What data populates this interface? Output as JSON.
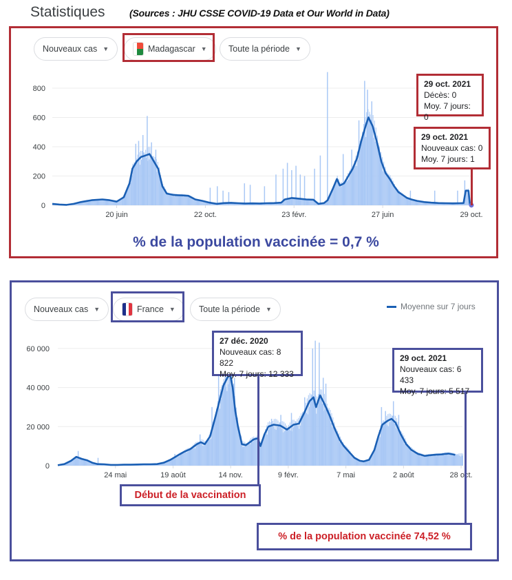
{
  "header": {
    "title": "Statistiques",
    "sources": "(Sources : JHU CSSE COVID-19 Data et Our World in Data)"
  },
  "colors": {
    "line": "#1a5fb4",
    "bar": "#a9c8f5",
    "red_frame": "#b22d35",
    "blue_frame": "#4a4f9c",
    "vacc_red": "#cc2027",
    "vacc_blue": "#3c49a0"
  },
  "madagascar": {
    "filters": {
      "metric": "Nouveaux cas",
      "country": "Madagascar",
      "period": "Toute la période"
    },
    "flag_icon": "madagascar-flag-icon",
    "tooltip_deaths": {
      "date": "29 oct. 2021",
      "line1": "Décès: 0",
      "line2": "Moy. 7 jours: 0"
    },
    "tooltip_cases": {
      "date": "29 oct. 2021",
      "line1": "Nouveaux cas: 0",
      "line2": "Moy. 7 jours: 1"
    },
    "vaccination": "% de la population vaccinée = 0,7 %"
  },
  "france": {
    "filters": {
      "metric": "Nouveaux cas",
      "country": "France",
      "period": "Toute la période"
    },
    "flag_icon": "france-flag-icon",
    "legend": "Moyenne sur 7 jours",
    "tooltip_dec": {
      "date": "27 déc. 2020",
      "line1": "Nouveaux cas: 8 822",
      "line2": "Moy. 7 jours: 12 333"
    },
    "tooltip_oct": {
      "date": "29 oct. 2021",
      "line1": "Nouveaux cas: 6 433",
      "line2": "Moy. 7 jours: 5 517"
    },
    "vaccination_start": "Début de la vaccination",
    "vaccination": "% de la population vaccinée 74,52 %"
  },
  "chart_data": [
    {
      "type": "bar",
      "title": "Nouveaux cas — Madagascar",
      "xlabel": "",
      "ylabel": "",
      "ylim": [
        0,
        900
      ],
      "yticks": [
        "0",
        "200",
        "400",
        "600",
        "800"
      ],
      "ytick_values": [
        0,
        200,
        400,
        600,
        800
      ],
      "xticks": [
        "20 juin",
        "22 oct.",
        "23 févr.",
        "27 juin",
        "29 oct."
      ],
      "xtick_days": [
        90,
        214,
        338,
        462,
        586
      ],
      "days_total": 586,
      "series": [
        {
          "name": "Moyenne sur 7 jours",
          "type": "line",
          "points": [
            [
              0,
              10
            ],
            [
              10,
              5
            ],
            [
              20,
              3
            ],
            [
              30,
              10
            ],
            [
              40,
              22
            ],
            [
              55,
              35
            ],
            [
              70,
              40
            ],
            [
              80,
              35
            ],
            [
              90,
              25
            ],
            [
              100,
              55
            ],
            [
              108,
              150
            ],
            [
              112,
              250
            ],
            [
              118,
              300
            ],
            [
              124,
              330
            ],
            [
              130,
              340
            ],
            [
              136,
              350
            ],
            [
              142,
              300
            ],
            [
              148,
              250
            ],
            [
              154,
              130
            ],
            [
              160,
              80
            ],
            [
              170,
              70
            ],
            [
              180,
              68
            ],
            [
              190,
              65
            ],
            [
              200,
              40
            ],
            [
              210,
              30
            ],
            [
              220,
              18
            ],
            [
              230,
              10
            ],
            [
              240,
              15
            ],
            [
              250,
              17
            ],
            [
              260,
              14
            ],
            [
              270,
              12
            ],
            [
              280,
              13
            ],
            [
              290,
              12
            ],
            [
              300,
              14
            ],
            [
              310,
              15
            ],
            [
              320,
              18
            ],
            [
              325,
              40
            ],
            [
              335,
              50
            ],
            [
              345,
              45
            ],
            [
              355,
              40
            ],
            [
              365,
              38
            ],
            [
              372,
              10
            ],
            [
              380,
              15
            ],
            [
              385,
              35
            ],
            [
              392,
              110
            ],
            [
              398,
              180
            ],
            [
              402,
              135
            ],
            [
              408,
              150
            ],
            [
              414,
              200
            ],
            [
              420,
              250
            ],
            [
              426,
              320
            ],
            [
              432,
              440
            ],
            [
              438,
              540
            ],
            [
              442,
              600
            ],
            [
              448,
              540
            ],
            [
              454,
              430
            ],
            [
              460,
              300
            ],
            [
              466,
              220
            ],
            [
              472,
              180
            ],
            [
              478,
              130
            ],
            [
              484,
              90
            ],
            [
              490,
              70
            ],
            [
              496,
              50
            ],
            [
              502,
              40
            ],
            [
              510,
              30
            ],
            [
              520,
              22
            ],
            [
              530,
              18
            ],
            [
              540,
              15
            ],
            [
              550,
              14
            ],
            [
              560,
              13
            ],
            [
              570,
              14
            ],
            [
              575,
              15
            ],
            [
              578,
              100
            ],
            [
              582,
              100
            ],
            [
              584,
              3
            ],
            [
              586,
              1
            ]
          ]
        },
        {
          "name": "Nouveaux cas",
          "type": "bar",
          "spikes": [
            [
              98,
              60
            ],
            [
              110,
              230
            ],
            [
              116,
              420
            ],
            [
              120,
              440
            ],
            [
              126,
              480
            ],
            [
              132,
              610
            ],
            [
              138,
              430
            ],
            [
              144,
              380
            ],
            [
              150,
              200
            ],
            [
              220,
              120
            ],
            [
              230,
              130
            ],
            [
              238,
              100
            ],
            [
              246,
              90
            ],
            [
              268,
              150
            ],
            [
              276,
              140
            ],
            [
              296,
              130
            ],
            [
              312,
              210
            ],
            [
              322,
              250
            ],
            [
              328,
              290
            ],
            [
              334,
              240
            ],
            [
              340,
              270
            ],
            [
              346,
              210
            ],
            [
              352,
              200
            ],
            [
              366,
              250
            ],
            [
              374,
              340
            ],
            [
              384,
              910
            ],
            [
              406,
              350
            ],
            [
              418,
              380
            ],
            [
              428,
              580
            ],
            [
              436,
              850
            ],
            [
              440,
              790
            ],
            [
              446,
              710
            ],
            [
              458,
              300
            ],
            [
              470,
              200
            ],
            [
              500,
              100
            ],
            [
              534,
              100
            ],
            [
              566,
              100
            ],
            [
              576,
              170
            ]
          ]
        }
      ]
    },
    {
      "type": "bar",
      "title": "Nouveaux cas — France",
      "xlabel": "",
      "ylabel": "",
      "ylim": [
        0,
        65000
      ],
      "yticks": [
        "0",
        "20 000",
        "40 000",
        "60 000"
      ],
      "ytick_values": [
        0,
        20000,
        40000,
        60000
      ],
      "xticks": [
        "24 mai",
        "19 août",
        "14 nov.",
        "9 févr.",
        "7 mai",
        "2 août",
        "28 oct."
      ],
      "xtick_days": [
        87,
        174,
        261,
        348,
        435,
        522,
        609
      ],
      "days_total": 611,
      "series": [
        {
          "name": "Moyenne sur 7 jours",
          "type": "line",
          "points": [
            [
              0,
              200
            ],
            [
              10,
              800
            ],
            [
              20,
              2500
            ],
            [
              28,
              4500
            ],
            [
              36,
              3500
            ],
            [
              44,
              2800
            ],
            [
              52,
              1500
            ],
            [
              60,
              800
            ],
            [
              70,
              700
            ],
            [
              80,
              400
            ],
            [
              90,
              400
            ],
            [
              100,
              500
            ],
            [
              110,
              500
            ],
            [
              120,
              600
            ],
            [
              130,
              700
            ],
            [
              140,
              700
            ],
            [
              150,
              800
            ],
            [
              160,
              1500
            ],
            [
              170,
              3000
            ],
            [
              180,
              5000
            ],
            [
              190,
              7000
            ],
            [
              200,
              8500
            ],
            [
              210,
              11000
            ],
            [
              216,
              12000
            ],
            [
              222,
              11000
            ],
            [
              230,
              15000
            ],
            [
              238,
              25000
            ],
            [
              244,
              33000
            ],
            [
              250,
              41000
            ],
            [
              256,
              45000
            ],
            [
              260,
              47000
            ],
            [
              264,
              40000
            ],
            [
              268,
              28000
            ],
            [
              272,
              20000
            ],
            [
              278,
              11000
            ],
            [
              284,
              10500
            ],
            [
              290,
              12000
            ],
            [
              296,
              13500
            ],
            [
              302,
              14000
            ],
            [
              306,
              10000
            ],
            [
              312,
              16000
            ],
            [
              318,
              20000
            ],
            [
              326,
              21000
            ],
            [
              336,
              20500
            ],
            [
              346,
              18500
            ],
            [
              356,
              21000
            ],
            [
              364,
              21500
            ],
            [
              372,
              27000
            ],
            [
              380,
              33000
            ],
            [
              386,
              35000
            ],
            [
              390,
              30000
            ],
            [
              396,
              36000
            ],
            [
              402,
              32000
            ],
            [
              410,
              26000
            ],
            [
              418,
              19000
            ],
            [
              426,
              13000
            ],
            [
              432,
              10000
            ],
            [
              440,
              7000
            ],
            [
              448,
              4000
            ],
            [
              456,
              2500
            ],
            [
              462,
              2200
            ],
            [
              470,
              3000
            ],
            [
              478,
              8000
            ],
            [
              484,
              15000
            ],
            [
              490,
              21000
            ],
            [
              498,
              23000
            ],
            [
              504,
              24000
            ],
            [
              510,
              22000
            ],
            [
              518,
              16000
            ],
            [
              526,
              11000
            ],
            [
              534,
              8000
            ],
            [
              544,
              6000
            ],
            [
              554,
              5000
            ],
            [
              566,
              5500
            ],
            [
              580,
              5800
            ],
            [
              590,
              6200
            ],
            [
              600,
              5517
            ]
          ]
        },
        {
          "name": "Nouveaux cas",
          "type": "bar",
          "spikes": [
            [
              30,
              7500
            ],
            [
              60,
              4000
            ],
            [
              176,
              6000
            ],
            [
              214,
              16000
            ],
            [
              232,
              30000
            ],
            [
              242,
              46000
            ],
            [
              252,
              52000
            ],
            [
              258,
              54000
            ],
            [
              266,
              45000
            ],
            [
              276,
              15000
            ],
            [
              292,
              13000
            ],
            [
              302,
              21000
            ],
            [
              322,
              24000
            ],
            [
              336,
              26000
            ],
            [
              352,
              27000
            ],
            [
              372,
              35000
            ],
            [
              384,
              60000
            ],
            [
              388,
              64000
            ],
            [
              394,
              63000
            ],
            [
              400,
              45000
            ],
            [
              404,
              42000
            ],
            [
              470,
              3500
            ],
            [
              488,
              30000
            ],
            [
              494,
              28000
            ],
            [
              506,
              33000
            ],
            [
              514,
              26000
            ]
          ]
        }
      ]
    }
  ]
}
